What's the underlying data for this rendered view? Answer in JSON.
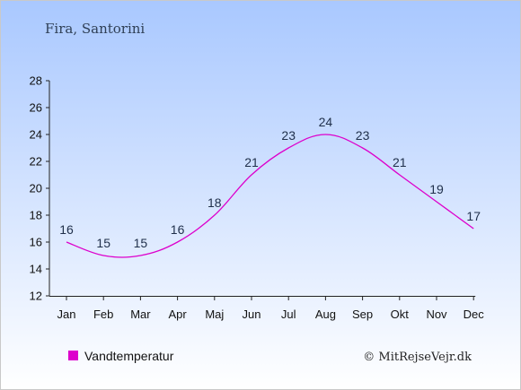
{
  "chart_data": {
    "type": "line",
    "title": "Fira, Santorini",
    "categories": [
      "Jan",
      "Feb",
      "Mar",
      "Apr",
      "Maj",
      "Jun",
      "Jul",
      "Aug",
      "Sep",
      "Okt",
      "Nov",
      "Dec"
    ],
    "series": [
      {
        "name": "Vandtemperatur",
        "values": [
          16,
          15,
          15,
          16,
          18,
          21,
          23,
          24,
          23,
          21,
          19,
          17
        ]
      }
    ],
    "ylim": [
      12,
      28
    ],
    "yticks": [
      12,
      14,
      16,
      18,
      20,
      22,
      24,
      26,
      28
    ],
    "grid": false,
    "legend_position": "bottom-left",
    "colors": {
      "line": "#dd00cc",
      "sky_top": "#a9c8ff",
      "sky_bottom": "#ffffff",
      "label": "#1f2f4a"
    }
  },
  "credit": "© MitRejseVejr.dk"
}
